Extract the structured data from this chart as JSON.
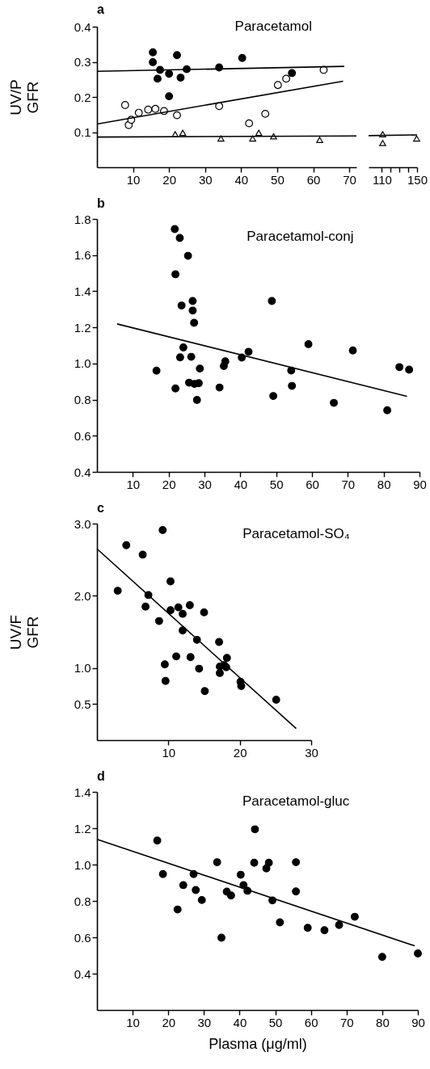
{
  "chart_data": [
    {
      "type": "scatter",
      "title": "a",
      "ylabel": "UV/P\nGFR",
      "annotations": [
        "Paracetamol"
      ],
      "xlim": [
        0,
        72
      ],
      "ylim": [
        0,
        0.4
      ],
      "xticks": [
        10,
        20,
        30,
        40,
        50,
        60,
        70
      ],
      "yticks": [
        0.1,
        0.2,
        0.3,
        0.4
      ],
      "series": [
        {
          "type": "scatter",
          "marker": "circle",
          "color": "#000000",
          "x": [
            15.5,
            15.5,
            17.5,
            16.8,
            20,
            20,
            22.2,
            23.2,
            24.9,
            33.9,
            40.3,
            54.1
          ],
          "values": [
            0.327,
            0.299,
            0.277,
            0.252,
            0.266,
            0.202,
            0.319,
            0.255,
            0.279,
            0.284,
            0.311,
            0.268
          ]
        },
        {
          "type": "scatter",
          "marker": "circle",
          "color": "#ffffff",
          "x": [
            7.8,
            8.8,
            9.5,
            11.6,
            14.2,
            16.2,
            18.6,
            22.2,
            33.9,
            42.2,
            46.7,
            50.2,
            52.5,
            62.9
          ],
          "values": [
            0.177,
            0.12,
            0.135,
            0.155,
            0.164,
            0.166,
            0.16,
            0.148,
            0.174,
            0.125,
            0.152,
            0.234,
            0.252,
            0.277
          ]
        },
        {
          "type": "scatter",
          "marker": "triangle",
          "color": "#ffffff",
          "x": [
            21.7,
            23.8,
            34.4,
            43.2,
            44.9,
            49,
            61.8
          ],
          "values": [
            0.094,
            0.098,
            0.082,
            0.082,
            0.098,
            0.088,
            0.078
          ]
        },
        {
          "type": "line",
          "color": "#000000",
          "x": [
            0,
            68.6
          ],
          "values": [
            0.273,
            0.287
          ]
        },
        {
          "type": "line",
          "color": "#000000",
          "x": [
            0,
            68.3
          ],
          "values": [
            0.123,
            0.245
          ]
        },
        {
          "type": "line",
          "color": "#000000",
          "x": [
            0,
            72
          ],
          "values": [
            0.086,
            0.089
          ]
        }
      ]
    },
    {
      "type": "scatter",
      "tick_labels": "x",
      "xlim": [
        95,
        150
      ],
      "ylim": [
        0,
        0.4
      ],
      "xticks": [
        110,
        {
          "value": 120,
          "label": null
        },
        {
          "value": 130,
          "label": null
        },
        {
          "value": 140,
          "label": null
        },
        150
      ],
      "series": [
        {
          "type": "scatter",
          "marker": "triangle",
          "color": "#ffffff",
          "x": [
            111,
            111,
            149.5
          ],
          "values": [
            0.094,
            0.069,
            0.082
          ]
        },
        {
          "type": "line",
          "color": "#000000",
          "x": [
            95,
            150
          ],
          "values": [
            0.09,
            0.092
          ]
        }
      ]
    },
    {
      "type": "scatter",
      "title": "b",
      "annotations": [
        "Paracetamol-conj"
      ],
      "xlim": [
        0,
        90
      ],
      "ylim": [
        0.4,
        1.8
      ],
      "xticks": [
        10,
        20,
        30,
        40,
        50,
        60,
        70,
        80,
        90
      ],
      "yticks": [
        0.4,
        0.6,
        0.8,
        {
          "value": 1,
          "label": "1.0"
        },
        1.2,
        1.4,
        1.6,
        1.8
      ],
      "series": [
        {
          "type": "scatter",
          "marker": "circle",
          "color": "#000000",
          "x": [
            21.7,
            23.1,
            25.4,
            21.9,
            23.6,
            26.7,
            26.7,
            27.1,
            24.1,
            23.2,
            26.3,
            16.6,
            21.9,
            25.7,
            27.2,
            28.4,
            28.7,
            27.9,
            34.2,
            35.4,
            35.8,
            40.4,
            42.3,
            48.8,
            49.2,
            54.2,
            54.4,
            59,
            66.1,
            71.4,
            81,
            84.4,
            87.1
          ],
          "values": [
            1.744,
            1.695,
            1.596,
            1.494,
            1.321,
            1.346,
            1.293,
            1.225,
            1.089,
            1.034,
            1.037,
            0.96,
            0.862,
            0.894,
            0.887,
            0.891,
            0.972,
            0.798,
            0.867,
            0.986,
            1.012,
            1.033,
            1.065,
            1.346,
            0.82,
            0.961,
            0.876,
            1.107,
            0.782,
            1.072,
            0.741,
            0.98,
            0.966
          ]
        },
        {
          "type": "line",
          "color": "#000000",
          "x": [
            5.6,
            86.5
          ],
          "values": [
            1.219,
            0.818
          ]
        }
      ]
    },
    {
      "type": "scatter",
      "title": "c",
      "ylabel": "UV/F\nGFR",
      "annotations": [
        "Paracetamol-SO₄"
      ],
      "xlim": [
        0,
        30
      ],
      "ylim": [
        0,
        3
      ],
      "xticks": [
        10,
        20,
        30
      ],
      "yticks": [
        0.5,
        {
          "value": 1,
          "label": "1.0"
        },
        {
          "value": 2,
          "label": "2.0"
        },
        {
          "value": 3,
          "label": "3.0"
        }
      ],
      "series": [
        {
          "type": "scatter",
          "marker": "circle",
          "color": "#000000",
          "x": [
            9.2,
            4.1,
            6.4,
            2.9,
            7.2,
            6.8,
            10.3,
            8.7,
            10.3,
            11.4,
            12,
            13,
            15,
            12,
            14,
            17.1,
            11.1,
            13.1,
            9.5,
            9.6,
            14.3,
            15.1,
            17.2,
            17.2,
            18.2,
            18.1,
            17.8,
            20.1,
            20.2,
            25.1
          ],
          "values": [
            2.91,
            2.7,
            2.57,
            2.07,
            2.01,
            1.85,
            2.2,
            1.65,
            1.8,
            1.84,
            1.75,
            1.87,
            1.77,
            1.52,
            1.39,
            1.36,
            1.16,
            1.15,
            1.05,
            0.82,
            0.99,
            0.68,
            1.02,
            0.93,
            1.14,
            1.01,
            1.04,
            0.81,
            0.75,
            0.56
          ]
        },
        {
          "type": "line",
          "color": "#000000",
          "x": [
            0,
            27.9
          ],
          "values": [
            2.65,
            0.16
          ]
        }
      ]
    },
    {
      "type": "scatter",
      "title": "d",
      "xlabel": "Plasma (μg/ml)",
      "annotations": [
        "Paracetamol-gluc"
      ],
      "xlim": [
        0,
        90
      ],
      "ylim": [
        0.2,
        1.4
      ],
      "xticks": [
        10,
        20,
        30,
        40,
        50,
        60,
        70,
        80,
        90
      ],
      "yticks": [
        0.4,
        0.6,
        0.8,
        {
          "value": 1,
          "label": "1.0"
        },
        1.2,
        1.4
      ],
      "series": [
        {
          "type": "scatter",
          "marker": "circle",
          "color": "#000000",
          "x": [
            16.9,
            18.5,
            22.6,
            24.2,
            27.1,
            27.7,
            29.4,
            33.7,
            34.9,
            36.4,
            37.6,
            40.3,
            41.1,
            42.2,
            44.3,
            44.1,
            47.5,
            48.2,
            49.2,
            51.3,
            55.8,
            55.8,
            59.1,
            63.8,
            67.9,
            72.3,
            80,
            90
          ],
          "values": [
            1.132,
            0.948,
            0.753,
            0.887,
            0.948,
            0.86,
            0.805,
            1.013,
            0.598,
            0.851,
            0.83,
            0.944,
            0.887,
            0.856,
            1.194,
            1.01,
            0.979,
            1.01,
            0.803,
            0.682,
            1.013,
            0.852,
            0.652,
            0.639,
            0.668,
            0.713,
            0.492,
            0.511
          ]
        },
        {
          "type": "line",
          "color": "#000000",
          "x": [
            0,
            89.1
          ],
          "values": [
            1.139,
            0.553
          ]
        }
      ]
    }
  ]
}
